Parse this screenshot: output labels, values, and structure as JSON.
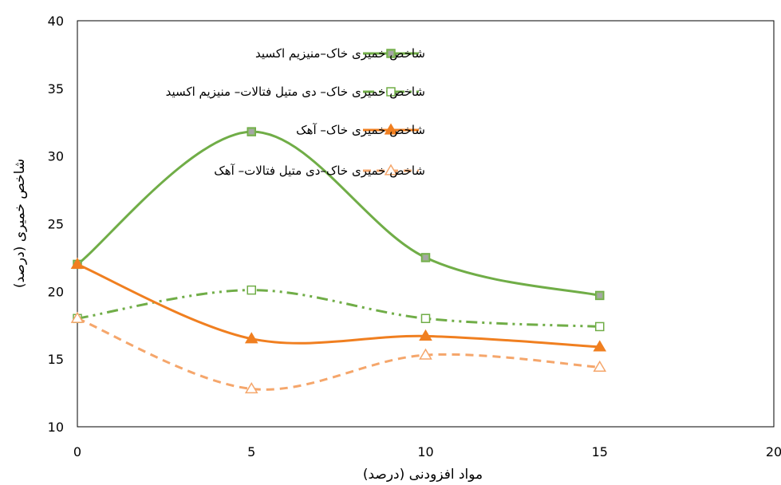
{
  "chart_data": {
    "type": "line",
    "smooth": true,
    "xlabel": "مواد افزودنی (درصد)",
    "ylabel": "شاخص خمیری (درصد)",
    "xlim": [
      0,
      20
    ],
    "ylim": [
      10,
      40
    ],
    "x_ticks": [
      "0",
      "5",
      "10",
      "15",
      "20"
    ],
    "y_ticks": [
      "10",
      "15",
      "20",
      "25",
      "30",
      "35",
      "40"
    ],
    "grid": false,
    "legend_position": "top-right",
    "series": [
      {
        "name": "شاخص خمیری خاک–منیزیم اکسید",
        "color": "#70ad47",
        "line_style": "solid",
        "marker": "square-filled",
        "x": [
          0,
          5,
          10,
          15
        ],
        "y": [
          22,
          31.8,
          22.5,
          19.7
        ]
      },
      {
        "name": "شاخص خمیری خاک– دی متیل فتالات– منیزیم اکسید",
        "color": "#70ad47",
        "line_style": "dash-dot-dot",
        "marker": "square-open",
        "x": [
          0,
          5,
          10,
          15
        ],
        "y": [
          18,
          20.1,
          18,
          17.4
        ]
      },
      {
        "name": "شاخص خمیری خاک– آهک",
        "color": "#f07f20",
        "line_style": "solid",
        "marker": "triangle-filled",
        "x": [
          0,
          5,
          10,
          15
        ],
        "y": [
          22,
          16.5,
          16.7,
          15.9
        ]
      },
      {
        "name": "شاخص خمیری خاک–دی متیل فتالات– آهک",
        "color": "#f5a66b",
        "line_style": "dashed",
        "marker": "triangle-open",
        "x": [
          0,
          5,
          10,
          15
        ],
        "y": [
          18,
          12.8,
          15.3,
          14.4
        ]
      }
    ]
  }
}
